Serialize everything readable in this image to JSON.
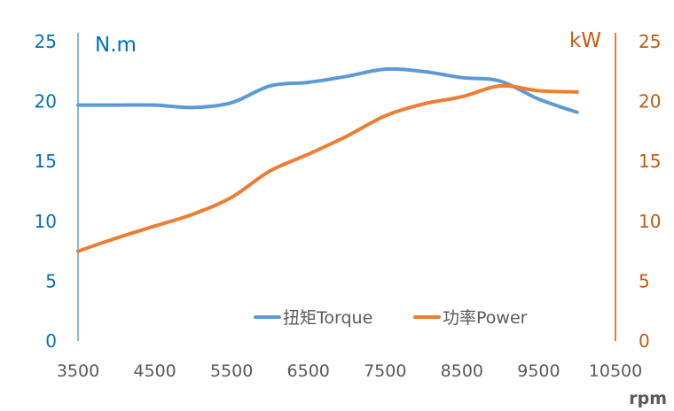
{
  "chart_data": {
    "type": "line",
    "title": "",
    "xlabel": "rpm",
    "ylabel_left": "N.m",
    "ylabel_right": "kW",
    "xlim": [
      3500,
      10500
    ],
    "xticks": [
      3500,
      4500,
      5500,
      6500,
      7500,
      8500,
      9500,
      10500
    ],
    "ylim_left": [
      0,
      25
    ],
    "ylim_right": [
      0,
      25
    ],
    "yticks": [
      0,
      5,
      10,
      15,
      20,
      25
    ],
    "grid": false,
    "legend_placement": "bottom-center",
    "x": [
      3500,
      4000,
      4500,
      5000,
      5500,
      6000,
      6500,
      7000,
      7500,
      8000,
      8500,
      9000,
      9500,
      10000
    ],
    "series": [
      {
        "name": "扭矩Torque",
        "axis": "left",
        "color": "#5B9BD5",
        "values": [
          19.7,
          19.7,
          19.7,
          19.5,
          19.9,
          21.3,
          21.6,
          22.1,
          22.7,
          22.5,
          22.0,
          21.7,
          20.2,
          19.1
        ]
      },
      {
        "name": "功率Power",
        "axis": "right",
        "color": "#ED7D31",
        "values": [
          7.5,
          8.6,
          9.6,
          10.6,
          12.0,
          14.2,
          15.6,
          17.1,
          18.8,
          19.8,
          20.4,
          21.3,
          20.9,
          20.8
        ]
      }
    ],
    "colors": {
      "left_axis": "#0070C0",
      "right_axis": "#C55A11",
      "x_axis_text": "#595959"
    }
  }
}
